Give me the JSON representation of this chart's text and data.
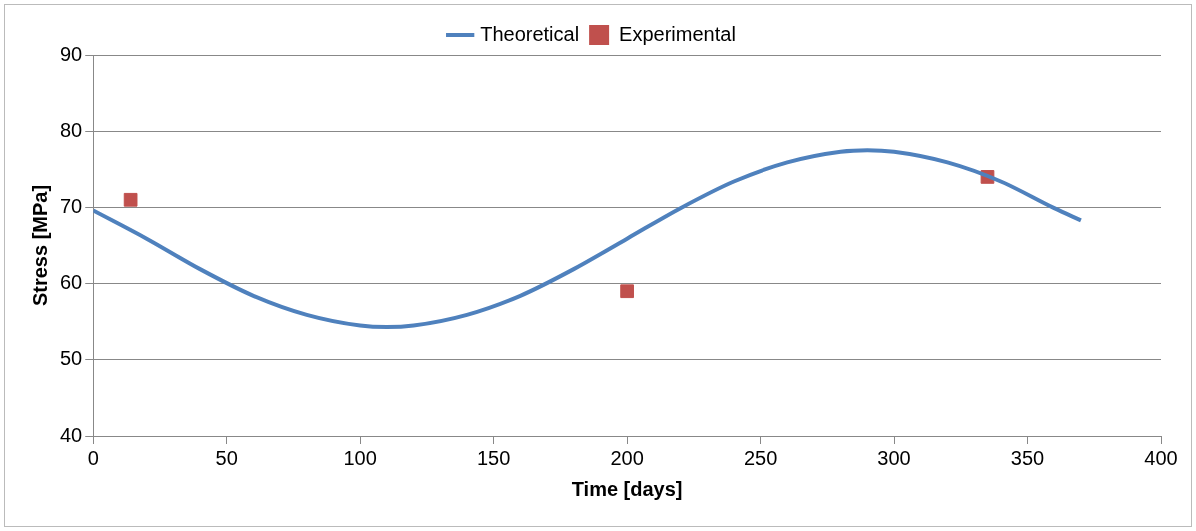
{
  "chart_data": {
    "type": "line",
    "xlabel": "Time [days]",
    "ylabel": "Stress [MPa]",
    "xlim": [
      0,
      400
    ],
    "xticks": [
      0,
      50,
      100,
      150,
      200,
      250,
      300,
      350,
      400
    ],
    "ylim": [
      40,
      90
    ],
    "yticks": [
      40,
      50,
      60,
      70,
      80,
      90
    ],
    "grid": "y",
    "legend": "top",
    "series": [
      {
        "name": "Theoretical",
        "type": "line",
        "color": "#4f81bd",
        "marker": "none",
        "x": [
          0,
          20,
          40,
          60,
          80,
          100,
          110,
          120,
          140,
          160,
          180,
          200,
          220,
          240,
          260,
          280,
          290,
          300,
          320,
          340,
          360,
          370
        ],
        "values": [
          69.6,
          65.9,
          61.9,
          58.4,
          55.9,
          54.5,
          54.3,
          54.5,
          55.9,
          58.4,
          61.9,
          65.9,
          69.9,
          73.4,
          75.9,
          77.3,
          77.5,
          77.3,
          75.9,
          73.4,
          69.9,
          68.3
        ]
      },
      {
        "name": "Experimental",
        "type": "scatter",
        "color": "#c0504d",
        "marker": "square",
        "x": [
          14,
          200,
          335
        ],
        "values": [
          71,
          59,
          74
        ]
      }
    ]
  }
}
